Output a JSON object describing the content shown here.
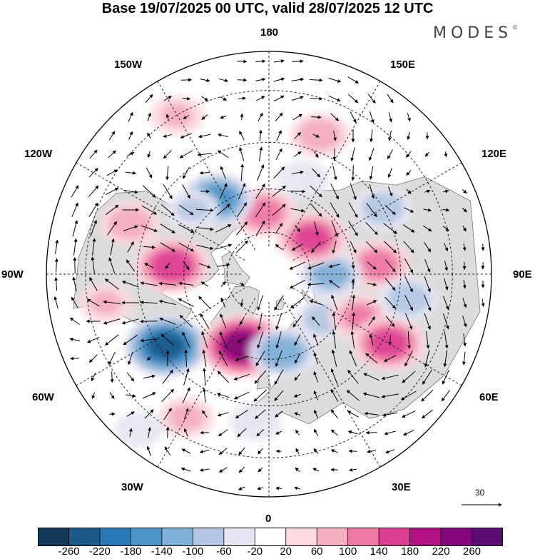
{
  "title": "Base 19/07/2025 00 UTC, valid 28/07/2025 12 UTC",
  "brand": {
    "name": "MODES",
    "mark": "©"
  },
  "longitude_labels": {
    "top": "180",
    "bottom": "0",
    "left": "90W",
    "right": "90E",
    "upper_left_1": "150W",
    "upper_left_2": "120W",
    "upper_right_1": "150E",
    "upper_right_2": "120E",
    "lower_left_1": "60W",
    "lower_left_2": "30W",
    "lower_right_1": "60E",
    "lower_right_2": "30E"
  },
  "reference_vector": {
    "value": "30"
  },
  "colorbar": {
    "ticks": [
      "-260",
      "-220",
      "-180",
      "-140",
      "-100",
      "-60",
      "-20",
      "20",
      "60",
      "100",
      "140",
      "180",
      "220",
      "260"
    ],
    "colors": [
      "#133a58",
      "#1d5a8a",
      "#2a78b5",
      "#4d95c6",
      "#7fb0d7",
      "#b4c7e2",
      "#e6e6f2",
      "#ffffff",
      "#fbd9df",
      "#f5adc0",
      "#ee78a6",
      "#dd3f93",
      "#b31183",
      "#85067a",
      "#5a0d72"
    ]
  },
  "map_features": {
    "anomalies": [
      {
        "name": "canada-positive",
        "lon": -95,
        "lat": 56,
        "value": 170
      },
      {
        "name": "nw-atlantic-negative",
        "lon": -55,
        "lat": 47,
        "value": -220
      },
      {
        "name": "greenland-sea-positive",
        "lon": -20,
        "lat": 63,
        "value": 230
      },
      {
        "name": "scandinavia-negative",
        "lon": 10,
        "lat": 62,
        "value": -130
      },
      {
        "name": "barents-negative",
        "lon": 50,
        "lat": 65,
        "value": -80
      },
      {
        "name": "west-siberia-positive",
        "lon": 65,
        "lat": 55,
        "value": 100
      },
      {
        "name": "kazakh-positive",
        "lon": 60,
        "lat": 43,
        "value": 160
      },
      {
        "name": "siberia-positive",
        "lon": 95,
        "lat": 52,
        "value": 120
      },
      {
        "name": "central-siberia-negative",
        "lon": 90,
        "lat": 68,
        "value": -110
      },
      {
        "name": "mongolia-negative",
        "lon": 80,
        "lat": 42,
        "value": -90
      },
      {
        "name": "laptev-positive",
        "lon": 130,
        "lat": 70,
        "value": 150
      },
      {
        "name": "okhotsk-negative",
        "lon": 120,
        "lat": 45,
        "value": -90
      },
      {
        "name": "bering-positive",
        "lon": -175,
        "lat": 68,
        "value": 120
      },
      {
        "name": "pacific-positive",
        "lon": 160,
        "lat": 40,
        "value": 90
      },
      {
        "name": "kamchatka-negative",
        "lon": 160,
        "lat": 55,
        "value": -50
      },
      {
        "name": "alaska-negative",
        "lon": -145,
        "lat": 58,
        "value": -160
      },
      {
        "name": "gulf-alaska-negative",
        "lon": -130,
        "lat": 55,
        "value": -60
      },
      {
        "name": "ne-pacific-positive",
        "lon": -150,
        "lat": 30,
        "value": 60
      },
      {
        "name": "usa-positive",
        "lon": -110,
        "lat": 40,
        "value": 90
      },
      {
        "name": "east-usa-positive",
        "lon": -80,
        "lat": 35,
        "value": 60
      },
      {
        "name": "mid-atlantic-positive",
        "lon": -30,
        "lat": 35,
        "value": 70
      },
      {
        "name": "iberia-negative",
        "lon": -5,
        "lat": 40,
        "value": -50
      },
      {
        "name": "azores-negative",
        "lon": -40,
        "lat": 25,
        "value": -30
      }
    ]
  }
}
